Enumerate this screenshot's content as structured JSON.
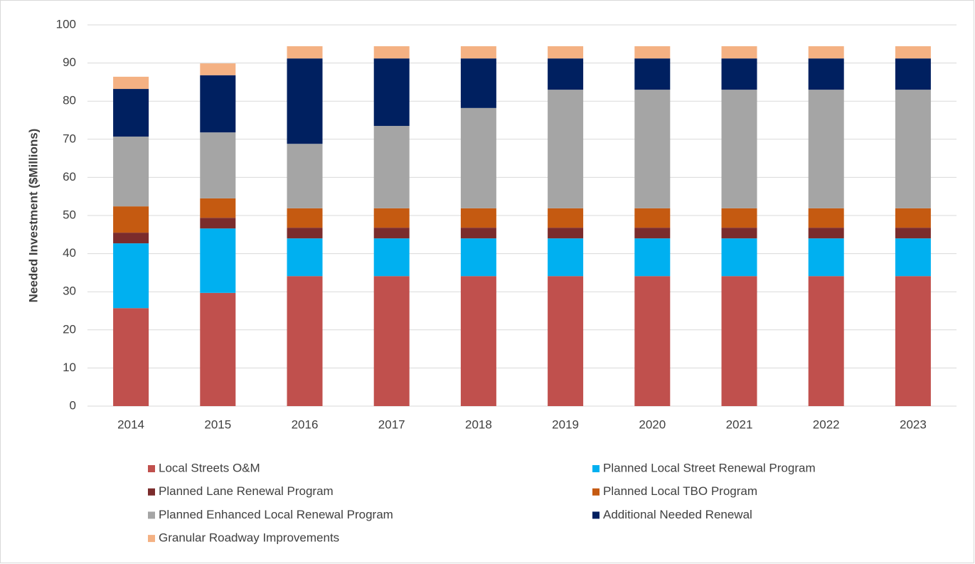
{
  "chart_data": {
    "type": "stacked_bar",
    "y_label": "Needed Investment ($Millions)",
    "categories": [
      "2014",
      "2015",
      "2016",
      "2017",
      "2018",
      "2019",
      "2020",
      "2021",
      "2022",
      "2023"
    ],
    "series": [
      {
        "name": "Local Streets O&M",
        "color": "#c0504d",
        "values": [
          25.7,
          29.7,
          34.1,
          34.1,
          34.1,
          34.1,
          34.1,
          34.1,
          34.1,
          34.1
        ]
      },
      {
        "name": "Planned Local Street Renewal Program",
        "color": "#00b0f0",
        "values": [
          17.0,
          16.9,
          9.9,
          9.9,
          9.9,
          9.9,
          9.9,
          9.9,
          9.9,
          9.9
        ]
      },
      {
        "name": "Planned Lane Renewal Program",
        "color": "#7b2c2c",
        "values": [
          2.8,
          2.8,
          2.8,
          2.8,
          2.8,
          2.8,
          2.8,
          2.8,
          2.8,
          2.8
        ]
      },
      {
        "name": "Planned Local TBO Program",
        "color": "#c55a11",
        "values": [
          6.9,
          5.1,
          5.1,
          5.1,
          5.1,
          5.1,
          5.1,
          5.1,
          5.1,
          5.1
        ]
      },
      {
        "name": "Planned Enhanced Local Renewal Program",
        "color": "#a5a5a5",
        "values": [
          18.3,
          17.3,
          16.9,
          21.6,
          26.3,
          31.1,
          31.1,
          31.1,
          31.1,
          31.1
        ]
      },
      {
        "name": "Additional Needed Renewal",
        "color": "#002060",
        "values": [
          12.5,
          15.0,
          22.4,
          17.7,
          13.0,
          8.2,
          8.2,
          8.2,
          8.2,
          8.2
        ]
      },
      {
        "name": "Granular Roadway Improvements",
        "color": "#f4b183",
        "values": [
          3.2,
          3.1,
          3.2,
          3.2,
          3.2,
          3.2,
          3.2,
          3.2,
          3.2,
          3.2
        ]
      }
    ],
    "ylim": [
      0,
      100
    ],
    "yticks": [
      0,
      10,
      20,
      30,
      40,
      50,
      60,
      70,
      80,
      90,
      100
    ],
    "grid": true,
    "legend": "bottom"
  }
}
